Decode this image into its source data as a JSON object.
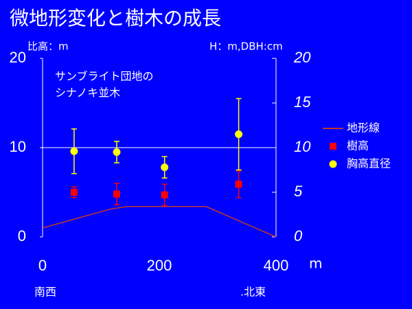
{
  "chart_data": {
    "type": "combo",
    "title": "微地形変化と樹木の成長",
    "y_label": "比高：m",
    "y2_label": "H：m,DBH:cm",
    "x_label": "m",
    "annotations": [
      "サンブライト団地の",
      "シナノキ並木"
    ],
    "x_notes": [
      "南西",
      ".北東"
    ],
    "xlim": [
      0,
      400
    ],
    "xticks": [
      0,
      200,
      400
    ],
    "ylim": [
      0,
      20
    ],
    "yticks": [
      0,
      10,
      20
    ],
    "y2lim": [
      0,
      20
    ],
    "y2ticks": [
      0,
      5,
      10,
      15,
      20
    ],
    "grid_y": [
      10
    ],
    "series": [
      {
        "name": "地形線",
        "type": "line",
        "color": "#c0392b",
        "x": [
          0,
          115,
          145,
          280,
          400
        ],
        "values": [
          1.0,
          3.1,
          3.4,
          3.4,
          0
        ]
      },
      {
        "name": "樹高",
        "type": "scatter",
        "marker": "square",
        "axis": "y2",
        "color": "#ff0000",
        "x": [
          54,
          127,
          209,
          336
        ],
        "values": [
          5.0,
          4.8,
          4.7,
          5.9
        ],
        "errors": [
          0.6,
          1.2,
          1.2,
          1.5
        ]
      },
      {
        "name": "胸高直径",
        "type": "scatter",
        "marker": "circle",
        "axis": "y2",
        "color": "#ffff00",
        "x": [
          54,
          127,
          209,
          336
        ],
        "values": [
          9.6,
          9.5,
          7.8,
          11.5
        ],
        "errors": [
          2.5,
          1.2,
          1.2,
          4.0
        ]
      }
    ]
  }
}
